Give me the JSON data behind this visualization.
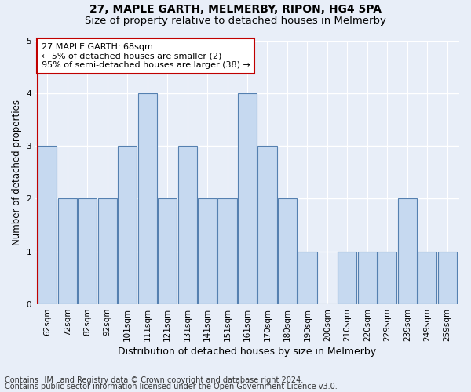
{
  "title1": "27, MAPLE GARTH, MELMERBY, RIPON, HG4 5PA",
  "title2": "Size of property relative to detached houses in Melmerby",
  "xlabel": "Distribution of detached houses by size in Melmerby",
  "ylabel": "Number of detached properties",
  "categories": [
    "62sqm",
    "72sqm",
    "82sqm",
    "92sqm",
    "101sqm",
    "111sqm",
    "121sqm",
    "131sqm",
    "141sqm",
    "151sqm",
    "161sqm",
    "170sqm",
    "180sqm",
    "190sqm",
    "200sqm",
    "210sqm",
    "220sqm",
    "229sqm",
    "239sqm",
    "249sqm",
    "259sqm"
  ],
  "values": [
    3,
    2,
    2,
    2,
    3,
    4,
    2,
    3,
    2,
    2,
    4,
    3,
    2,
    1,
    0,
    1,
    1,
    1,
    2,
    1,
    1
  ],
  "bar_color": "#c6d9f0",
  "bar_edge_color": "#5580b0",
  "highlight_color": "#c00000",
  "annotation_text": "27 MAPLE GARTH: 68sqm\n← 5% of detached houses are smaller (2)\n95% of semi-detached houses are larger (38) →",
  "annotation_box_color": "#ffffff",
  "annotation_box_edge": "#c00000",
  "ylim": [
    0,
    5
  ],
  "yticks": [
    0,
    1,
    2,
    3,
    4,
    5
  ],
  "footer1": "Contains HM Land Registry data © Crown copyright and database right 2024.",
  "footer2": "Contains public sector information licensed under the Open Government Licence v3.0.",
  "background_color": "#e8eef8",
  "plot_bg_color": "#e8eef8",
  "grid_color": "#ffffff",
  "title1_fontsize": 10,
  "title2_fontsize": 9.5,
  "tick_fontsize": 7.5,
  "ylabel_fontsize": 8.5,
  "xlabel_fontsize": 9,
  "annotation_fontsize": 8,
  "footer_fontsize": 7
}
